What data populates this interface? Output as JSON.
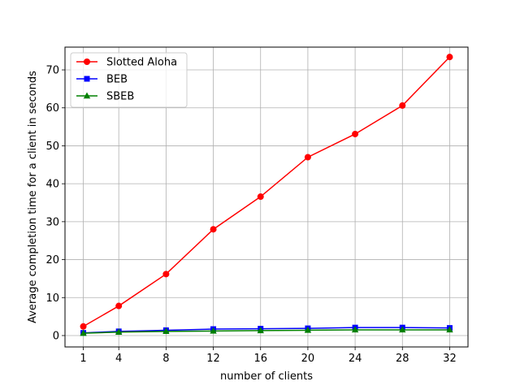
{
  "chart_data": {
    "type": "line",
    "title": "",
    "xlabel": "number of clients",
    "ylabel": "Average completion time for a client in seconds",
    "x": [
      1,
      4,
      8,
      12,
      16,
      20,
      24,
      28,
      32
    ],
    "x_ticks": [
      1,
      4,
      8,
      12,
      16,
      20,
      24,
      28,
      32
    ],
    "xlim": [
      -0.55,
      33.55
    ],
    "y_ticks": [
      0,
      10,
      20,
      30,
      40,
      50,
      60,
      70
    ],
    "ylim": [
      -3.0,
      76.0
    ],
    "grid": true,
    "legend_position": "top-left",
    "series": [
      {
        "name": "Slotted Aloha",
        "color": "#ff0000",
        "marker": "circle",
        "values": [
          2.4,
          7.8,
          16.2,
          28.0,
          36.6,
          47.0,
          53.1,
          60.6,
          73.4
        ]
      },
      {
        "name": "BEB",
        "color": "#0000ff",
        "marker": "square",
        "values": [
          0.7,
          1.1,
          1.4,
          1.7,
          1.8,
          1.9,
          2.1,
          2.1,
          2.0
        ]
      },
      {
        "name": "SBEB",
        "color": "#008000",
        "marker": "triangle",
        "values": [
          0.6,
          0.9,
          1.1,
          1.2,
          1.3,
          1.4,
          1.5,
          1.5,
          1.5
        ]
      }
    ]
  }
}
